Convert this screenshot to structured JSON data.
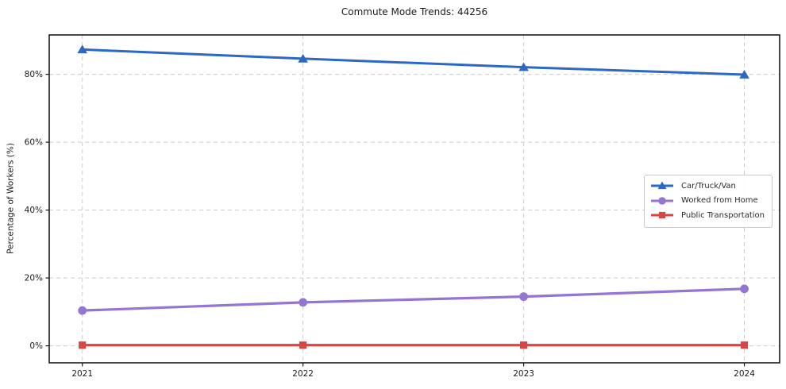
{
  "chart_data": {
    "type": "line",
    "title": "Commute Mode Trends: 44256",
    "xlabel": "",
    "ylabel": "Percentage of Workers (%)",
    "x": [
      2021,
      2022,
      2023,
      2024
    ],
    "x_tick_labels": [
      "2021",
      "2022",
      "2023",
      "2024"
    ],
    "y_ticks": [
      0,
      20,
      40,
      60,
      80
    ],
    "y_tick_labels": [
      "0%",
      "20%",
      "40%",
      "60%",
      "80%"
    ],
    "xlim": [
      2020.85,
      2024.16
    ],
    "ylim": [
      -5,
      91.6
    ],
    "grid": "dashed both axes",
    "legend_position": "center right",
    "background_color": "#ffffff",
    "grid_color": "#cccccc",
    "spine_color": "#1a1a1a",
    "series": [
      {
        "name": "Car/Truck/Van",
        "color": "#2d68c4",
        "marker": "triangle",
        "line_width": 3,
        "values": [
          87.3,
          84.6,
          82.1,
          79.9
        ]
      },
      {
        "name": "Worked from Home",
        "color": "#9575d4",
        "marker": "circle",
        "line_width": 3.2,
        "values": [
          10.4,
          12.8,
          14.5,
          16.8
        ]
      },
      {
        "name": "Public Transportation",
        "color": "#d84545",
        "marker": "square",
        "line_width": 3.2,
        "values": [
          0.2,
          0.2,
          0.2,
          0.2
        ]
      }
    ]
  }
}
